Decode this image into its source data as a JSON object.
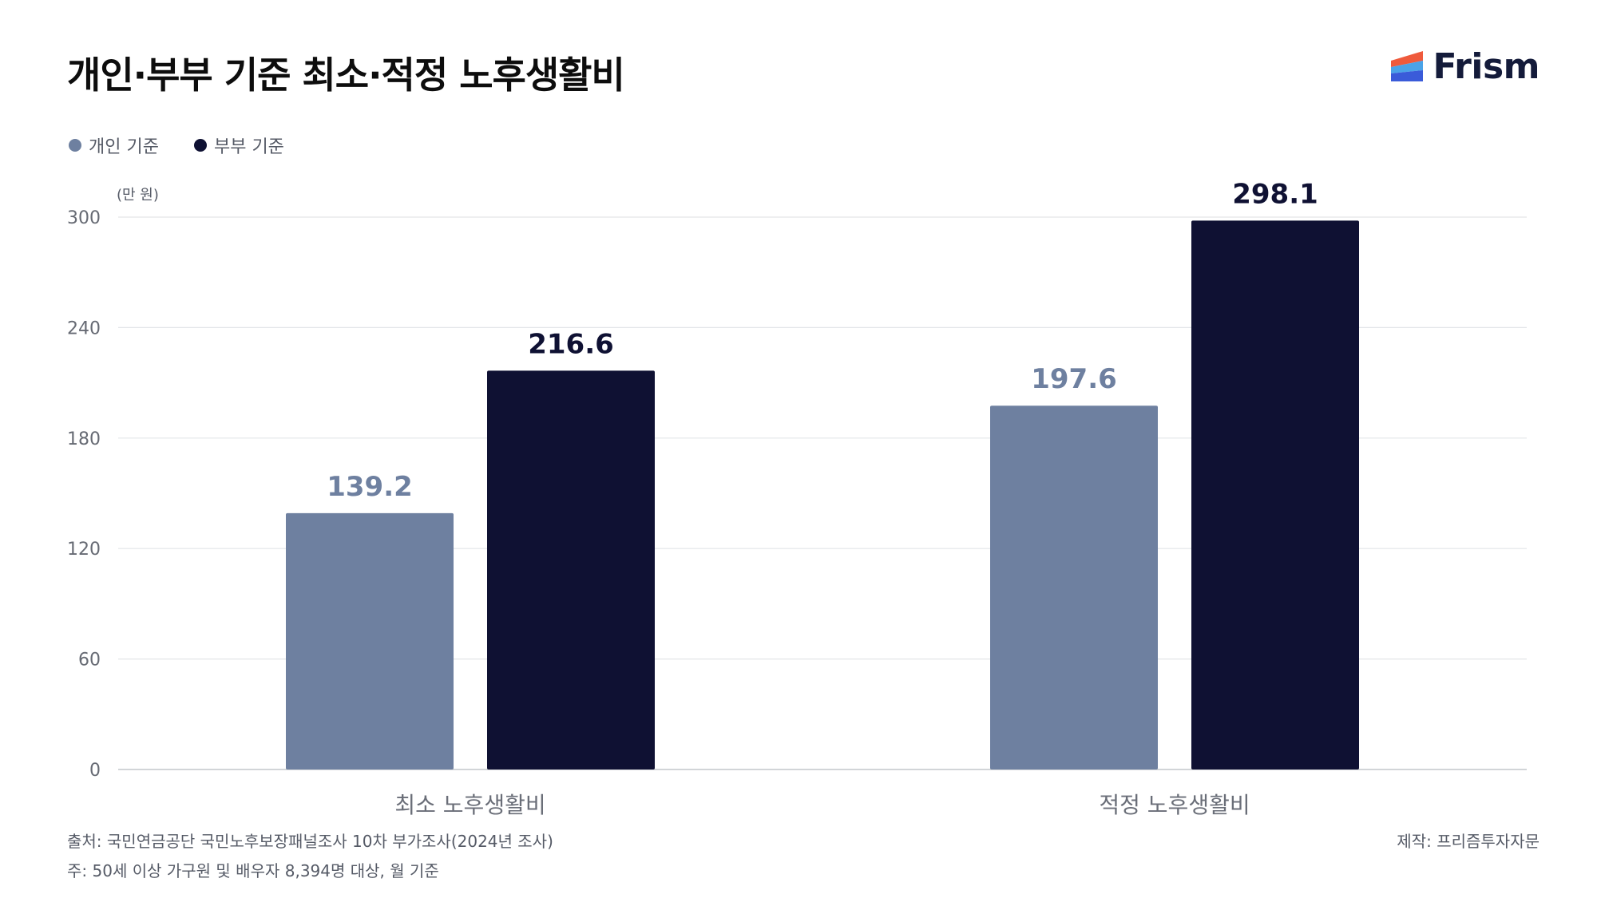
{
  "header": {
    "title": "개인·부부 기준 최소·적정 노후생활비",
    "brand_name": "Frism",
    "brand_icon": "frism-logo-icon"
  },
  "legend": {
    "items": [
      {
        "label": "개인 기준",
        "color": "#6e80a0"
      },
      {
        "label": "부부 기준",
        "color": "#0f1133"
      }
    ]
  },
  "chart_data": {
    "type": "bar",
    "unit_label": "(만 원)",
    "categories": [
      "최소 노후생활비",
      "적정 노후생활비"
    ],
    "series": [
      {
        "name": "개인 기준",
        "values": [
          139.2,
          197.6
        ],
        "color": "#6e80a0",
        "label_color": "#6e80a0"
      },
      {
        "name": "부부 기준",
        "values": [
          216.6,
          298.1
        ],
        "color": "#0f1133",
        "label_color": "#0f1133"
      }
    ],
    "ylim": [
      0,
      300
    ],
    "yticks": [
      0,
      60,
      120,
      180,
      240,
      300
    ],
    "grid": true,
    "legend_position": "top-left"
  },
  "footer": {
    "source": "출처: 국민연금공단 국민노후보장패널조사 10차 부가조사(2024년 조사)",
    "note": "주: 50세 이상 가구원 및 배우자 8,394명 대상, 월 기준",
    "credit": "제작: 프리즘투자자문"
  }
}
